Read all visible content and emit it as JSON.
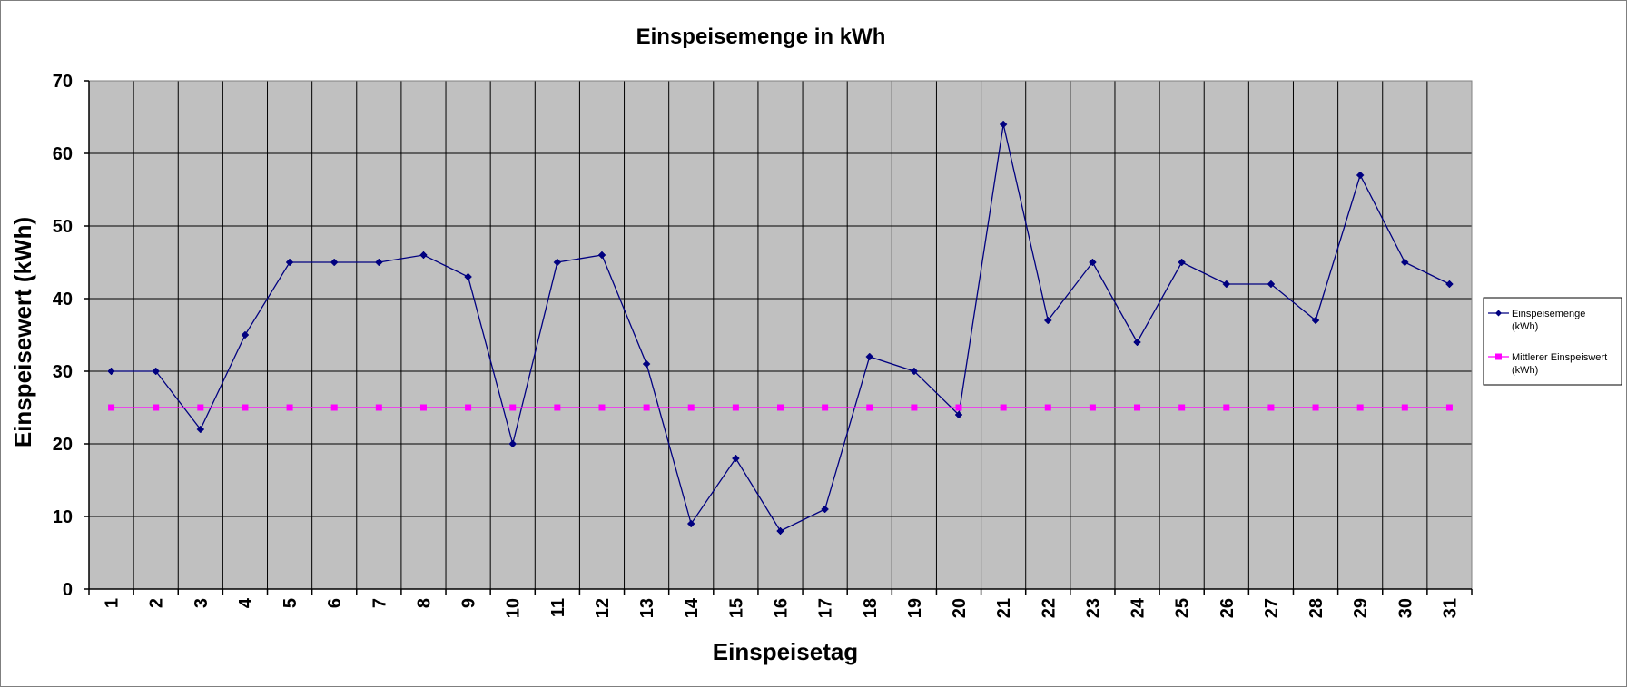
{
  "chart_data": {
    "type": "line",
    "title": "Einspeisemenge in kWh",
    "xlabel": "Einspeisetag",
    "ylabel": "Einspeisewert  (kWh)",
    "ylim": [
      0,
      70
    ],
    "yticks": [
      0,
      10,
      20,
      30,
      40,
      50,
      60,
      70
    ],
    "grid": true,
    "legend_position": "right",
    "plot_background": "#c0c0c0",
    "categories": [
      1,
      2,
      3,
      4,
      5,
      6,
      7,
      8,
      9,
      10,
      11,
      12,
      13,
      14,
      15,
      16,
      17,
      18,
      19,
      20,
      21,
      22,
      23,
      24,
      25,
      26,
      27,
      28,
      29,
      30,
      31
    ],
    "series": [
      {
        "name": "Einspeisemenge (kWh)",
        "legend_lines": [
          "Einspeisemenge",
          "(kWh)"
        ],
        "color": "#000080",
        "marker": "diamond",
        "values": [
          30,
          30,
          22,
          35,
          45,
          45,
          45,
          46,
          43,
          20,
          45,
          46,
          31,
          9,
          18,
          8,
          11,
          32,
          30,
          24,
          64,
          37,
          45,
          34,
          45,
          42,
          42,
          37,
          57,
          45,
          42
        ]
      },
      {
        "name": "Mittlerer Einspeiswert (kWh)",
        "legend_lines": [
          "Mittlerer Einspeiswert",
          "(kWh)"
        ],
        "color": "#ff00ff",
        "marker": "square",
        "values": [
          25,
          25,
          25,
          25,
          25,
          25,
          25,
          25,
          25,
          25,
          25,
          25,
          25,
          25,
          25,
          25,
          25,
          25,
          25,
          25,
          25,
          25,
          25,
          25,
          25,
          25,
          25,
          25,
          25,
          25,
          25
        ]
      }
    ]
  }
}
